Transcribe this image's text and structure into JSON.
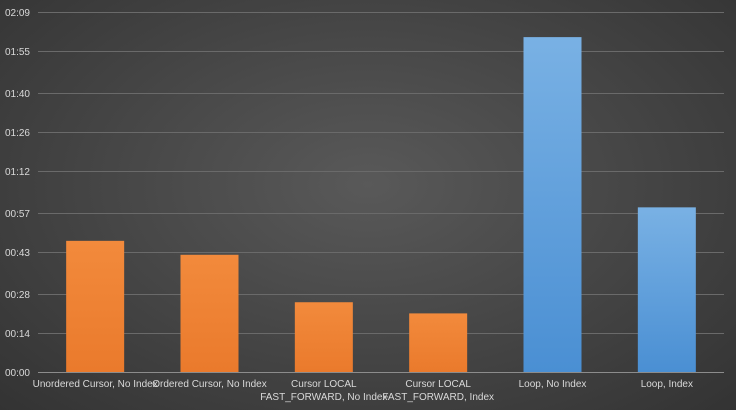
{
  "chart_data": {
    "type": "bar",
    "title": "",
    "xlabel": "",
    "ylabel": "",
    "y_unit": "seconds",
    "ylim": [
      0,
      129
    ],
    "yticks": [
      0,
      14,
      28,
      43,
      57,
      72,
      86,
      100,
      115,
      129
    ],
    "ytick_labels": [
      "00:00",
      "00:14",
      "00:28",
      "00:43",
      "00:57",
      "01:12",
      "01:26",
      "01:40",
      "01:55",
      "02:09"
    ],
    "grid": true,
    "legend": "none",
    "categories": [
      [
        "Unordered Cursor, No Index"
      ],
      [
        "Ordered Cursor, No Index"
      ],
      [
        "Cursor LOCAL",
        "FAST_FORWARD, No Index"
      ],
      [
        "Cursor LOCAL",
        "FAST_FORWARD, Index"
      ],
      [
        "Loop, No Index"
      ],
      [
        "Loop, Index"
      ]
    ],
    "values": [
      47,
      42,
      25,
      21,
      120,
      59
    ],
    "bar_colors": [
      "#ED7D31",
      "#ED7D31",
      "#ED7D31",
      "#ED7D31",
      "#5B9BD5",
      "#5B9BD5"
    ]
  }
}
